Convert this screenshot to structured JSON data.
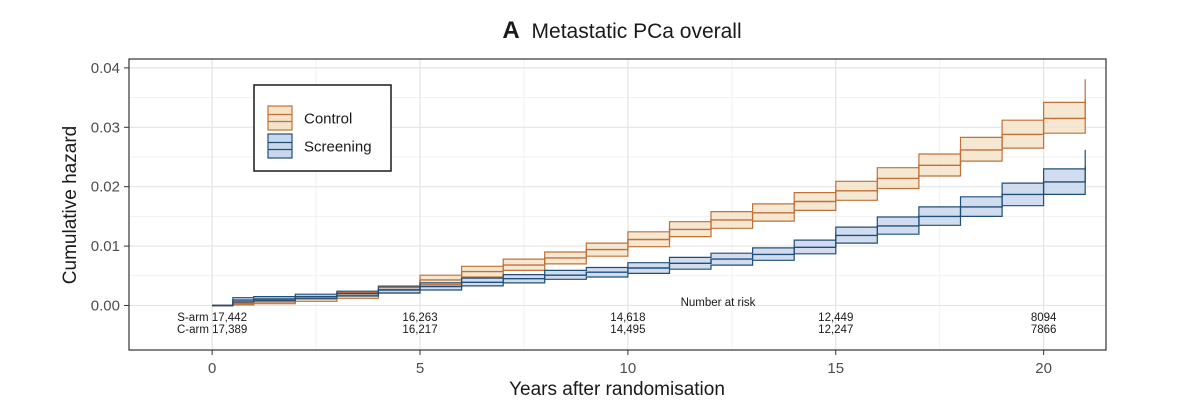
{
  "chart_data": {
    "type": "line",
    "panel_letter": "A",
    "title": "Metastatic PCa overall",
    "xlabel": "Years after randomisation",
    "ylabel": "Cumulative hazard",
    "xlim": [
      -2,
      21.5
    ],
    "ylim": [
      -0.0075,
      0.0415
    ],
    "x_ticks": [
      0,
      5,
      10,
      15,
      20
    ],
    "x_tick_labels": [
      "0",
      "5",
      "10",
      "15",
      "20"
    ],
    "y_ticks": [
      0,
      0.01,
      0.02,
      0.03,
      0.04
    ],
    "y_tick_labels": [
      "0.00",
      "0.01",
      "0.02",
      "0.03",
      "0.04"
    ],
    "grid": true,
    "legend_position": "top-left",
    "series": [
      {
        "name": "Control",
        "color": "#c0703a",
        "fill": "#f5e3c8",
        "x": [
          0,
          0.5,
          1,
          2,
          3,
          4,
          5,
          6,
          7,
          8,
          9,
          10,
          11,
          12,
          13,
          14,
          15,
          16,
          17,
          18,
          19,
          20,
          21
        ],
        "y": [
          0,
          0.0003,
          0.0006,
          0.0011,
          0.0017,
          0.0027,
          0.0043,
          0.0057,
          0.0068,
          0.008,
          0.0094,
          0.0111,
          0.0128,
          0.0144,
          0.0156,
          0.0175,
          0.0193,
          0.0214,
          0.0236,
          0.0262,
          0.0288,
          0.0315,
          0.0348
        ],
        "lower": [
          0,
          0.0001,
          0.0003,
          0.0007,
          0.0012,
          0.0021,
          0.0035,
          0.0048,
          0.0059,
          0.007,
          0.0083,
          0.0099,
          0.0116,
          0.013,
          0.0142,
          0.016,
          0.0177,
          0.0197,
          0.0218,
          0.0243,
          0.0265,
          0.029,
          0.0317
        ],
        "upper": [
          0,
          0.0005,
          0.0009,
          0.0015,
          0.0022,
          0.0033,
          0.0051,
          0.0066,
          0.0078,
          0.009,
          0.0105,
          0.0124,
          0.0141,
          0.0158,
          0.0171,
          0.019,
          0.0209,
          0.0232,
          0.0255,
          0.0283,
          0.0312,
          0.0342,
          0.0381
        ]
      },
      {
        "name": "Screening",
        "color": "#1f4e79",
        "fill": "#c9d7ec",
        "x": [
          0,
          0.5,
          1,
          2,
          3,
          4,
          5,
          6,
          7,
          8,
          9,
          10,
          11,
          12,
          13,
          14,
          15,
          16,
          17,
          18,
          19,
          20,
          21
        ],
        "y": [
          0,
          0.0009,
          0.0011,
          0.0015,
          0.002,
          0.0026,
          0.0032,
          0.0039,
          0.0045,
          0.0051,
          0.0056,
          0.0063,
          0.0071,
          0.0078,
          0.0086,
          0.0098,
          0.0118,
          0.0134,
          0.015,
          0.0166,
          0.0187,
          0.0208,
          0.0234
        ],
        "lower": [
          0,
          0.0006,
          0.0008,
          0.0012,
          0.0016,
          0.0021,
          0.0026,
          0.0033,
          0.0038,
          0.0044,
          0.0048,
          0.0054,
          0.0061,
          0.0068,
          0.0076,
          0.0087,
          0.0105,
          0.012,
          0.0135,
          0.015,
          0.0168,
          0.0187,
          0.0207
        ],
        "upper": [
          0,
          0.0013,
          0.0015,
          0.0019,
          0.0024,
          0.0031,
          0.0038,
          0.0046,
          0.0052,
          0.0059,
          0.0064,
          0.0072,
          0.0081,
          0.0088,
          0.0097,
          0.011,
          0.0132,
          0.0149,
          0.0166,
          0.0183,
          0.0206,
          0.023,
          0.0262
        ]
      }
    ],
    "risk_table": {
      "title": "Number at risk",
      "time_points": [
        0,
        5,
        10,
        15,
        20
      ],
      "rows": [
        {
          "label": "S-arm",
          "values": [
            "17,442",
            "16,263",
            "14,618",
            "12,449",
            "8094"
          ]
        },
        {
          "label": "C-arm",
          "values": [
            "17,389",
            "16,217",
            "14,495",
            "12,247",
            "7866"
          ]
        }
      ]
    }
  }
}
